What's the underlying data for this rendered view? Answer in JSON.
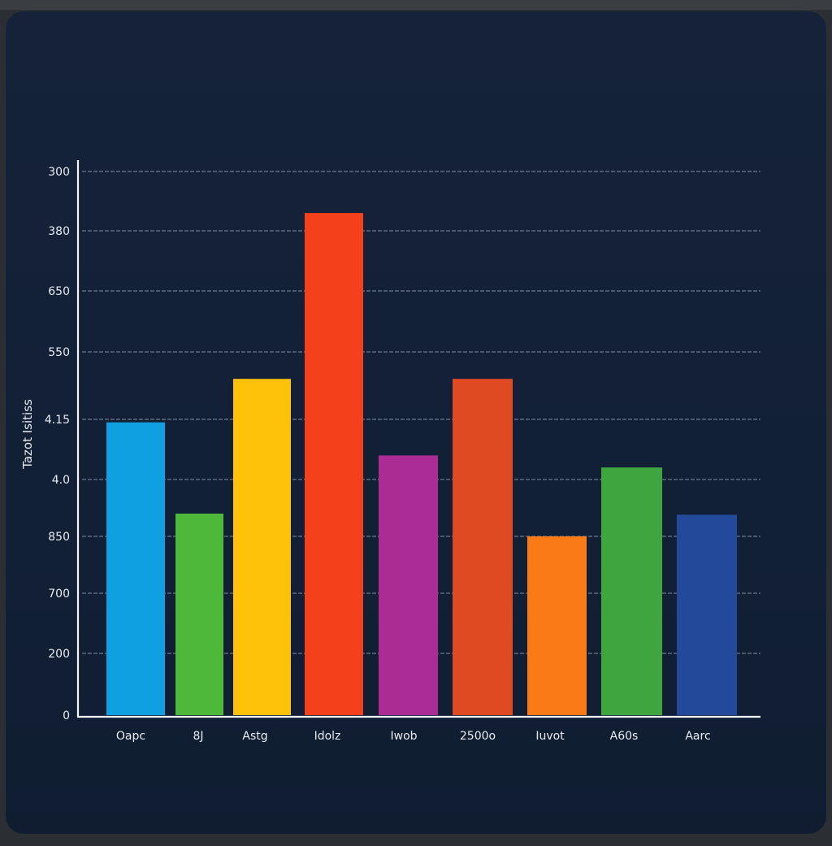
{
  "chart_data": {
    "type": "bar",
    "title": "",
    "xlabel": "",
    "ylabel": "Tazot Isitiss",
    "ylim": [
      0,
      9
    ],
    "grid": true,
    "yticks": [
      {
        "value": 0,
        "label": "0"
      },
      {
        "value": 1,
        "label": "200"
      },
      {
        "value": 2,
        "label": "700"
      },
      {
        "value": 3,
        "label": "850"
      },
      {
        "value": 4,
        "label": "4.0"
      },
      {
        "value": 5,
        "label": "4.15"
      },
      {
        "value": 6,
        "label": "550"
      },
      {
        "value": 7,
        "label": "650"
      },
      {
        "value": 8,
        "label": "380"
      },
      {
        "value": 9,
        "label": "300"
      }
    ],
    "categories": [
      "Oapc",
      "8J",
      "Astg",
      "Idolz",
      "Iwob",
      "2500o",
      "Iuvot",
      "A60s",
      "Aarc"
    ],
    "values": [
      4.95,
      3.4,
      5.6,
      8.3,
      4.4,
      5.6,
      3.0,
      4.2,
      3.38
    ],
    "colors": [
      "#0ea0e0",
      "#4db83a",
      "#ffc20a",
      "#f4411b",
      "#ac2c96",
      "#e04a22",
      "#f97a17",
      "#3fa53f",
      "#23499a"
    ]
  }
}
